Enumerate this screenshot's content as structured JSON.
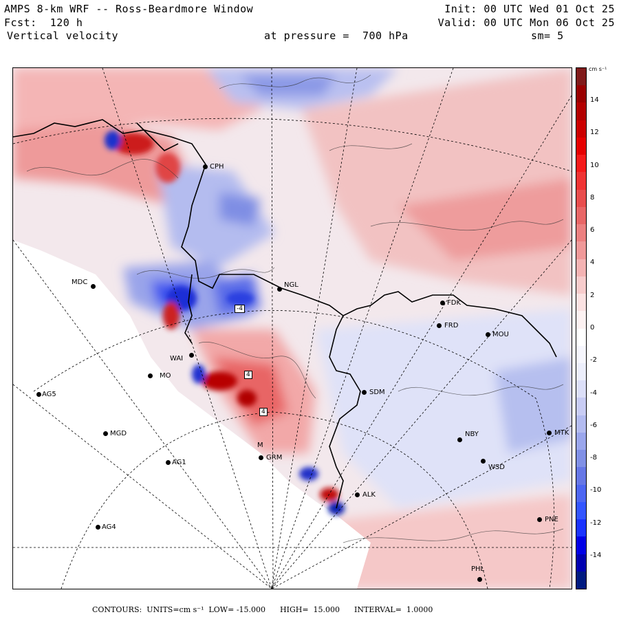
{
  "header": {
    "title": "AMPS 8-km WRF -- Ross-Beardmore Window",
    "forecast": "Fcst:  120 h",
    "variable": "Vertical velocity",
    "init": "Init: 00 UTC Wed 01 Oct 25",
    "valid": "Valid: 00 UTC Mon 06 Oct 25",
    "pressure": "at pressure =  700 hPa",
    "smoothing": "sm= 5"
  },
  "colorbar": {
    "units": "cm s⁻¹",
    "ticks": [
      "14",
      "12",
      "10",
      "8",
      "6",
      "4",
      "2",
      "0",
      "-2",
      "-4",
      "-6",
      "-8",
      "-10",
      "-12",
      "-14"
    ],
    "colors": [
      "#001a80",
      "#0000b0",
      "#0000e6",
      "#1a33ff",
      "#3355ff",
      "#4d66f2",
      "#6677e6",
      "#8090e6",
      "#9aa6ec",
      "#b3bbf0",
      "#c8ccf4",
      "#dcdff8",
      "#eceefb",
      "#f6f6fd",
      "#ffffff",
      "#fdf2f2",
      "#fbe2e2",
      "#f7cccc",
      "#f4b3b3",
      "#f09999",
      "#ec8080",
      "#e86666",
      "#e84d4d",
      "#f03333",
      "#f51a1a",
      "#e60000",
      "#cc0000",
      "#b30000",
      "#990000",
      "#801a1a"
    ]
  },
  "stations": [
    {
      "name": "CPH"
    },
    {
      "name": "MDC"
    },
    {
      "name": "NGL"
    },
    {
      "name": "FDK"
    },
    {
      "name": "FRD"
    },
    {
      "name": "MOU"
    },
    {
      "name": "WAI"
    },
    {
      "name": "MO"
    },
    {
      "name": "SDM"
    },
    {
      "name": "AG5"
    },
    {
      "name": "MGD"
    },
    {
      "name": "NBY"
    },
    {
      "name": "MTK"
    },
    {
      "name": "AG1"
    },
    {
      "name": "GRM"
    },
    {
      "name": "M"
    },
    {
      "name": "WSD"
    },
    {
      "name": "ALK"
    },
    {
      "name": "PNE"
    },
    {
      "name": "AG4"
    },
    {
      "name": "PHL"
    }
  ],
  "contour_labels": [
    "-4",
    "4",
    "4"
  ],
  "footer": {
    "contours": "CONTOURS:  UNITS=cm s⁻¹  LOW= -15.000",
    "high": "HIGH=  15.000",
    "interval": "INTERVAL=  1.0000"
  }
}
